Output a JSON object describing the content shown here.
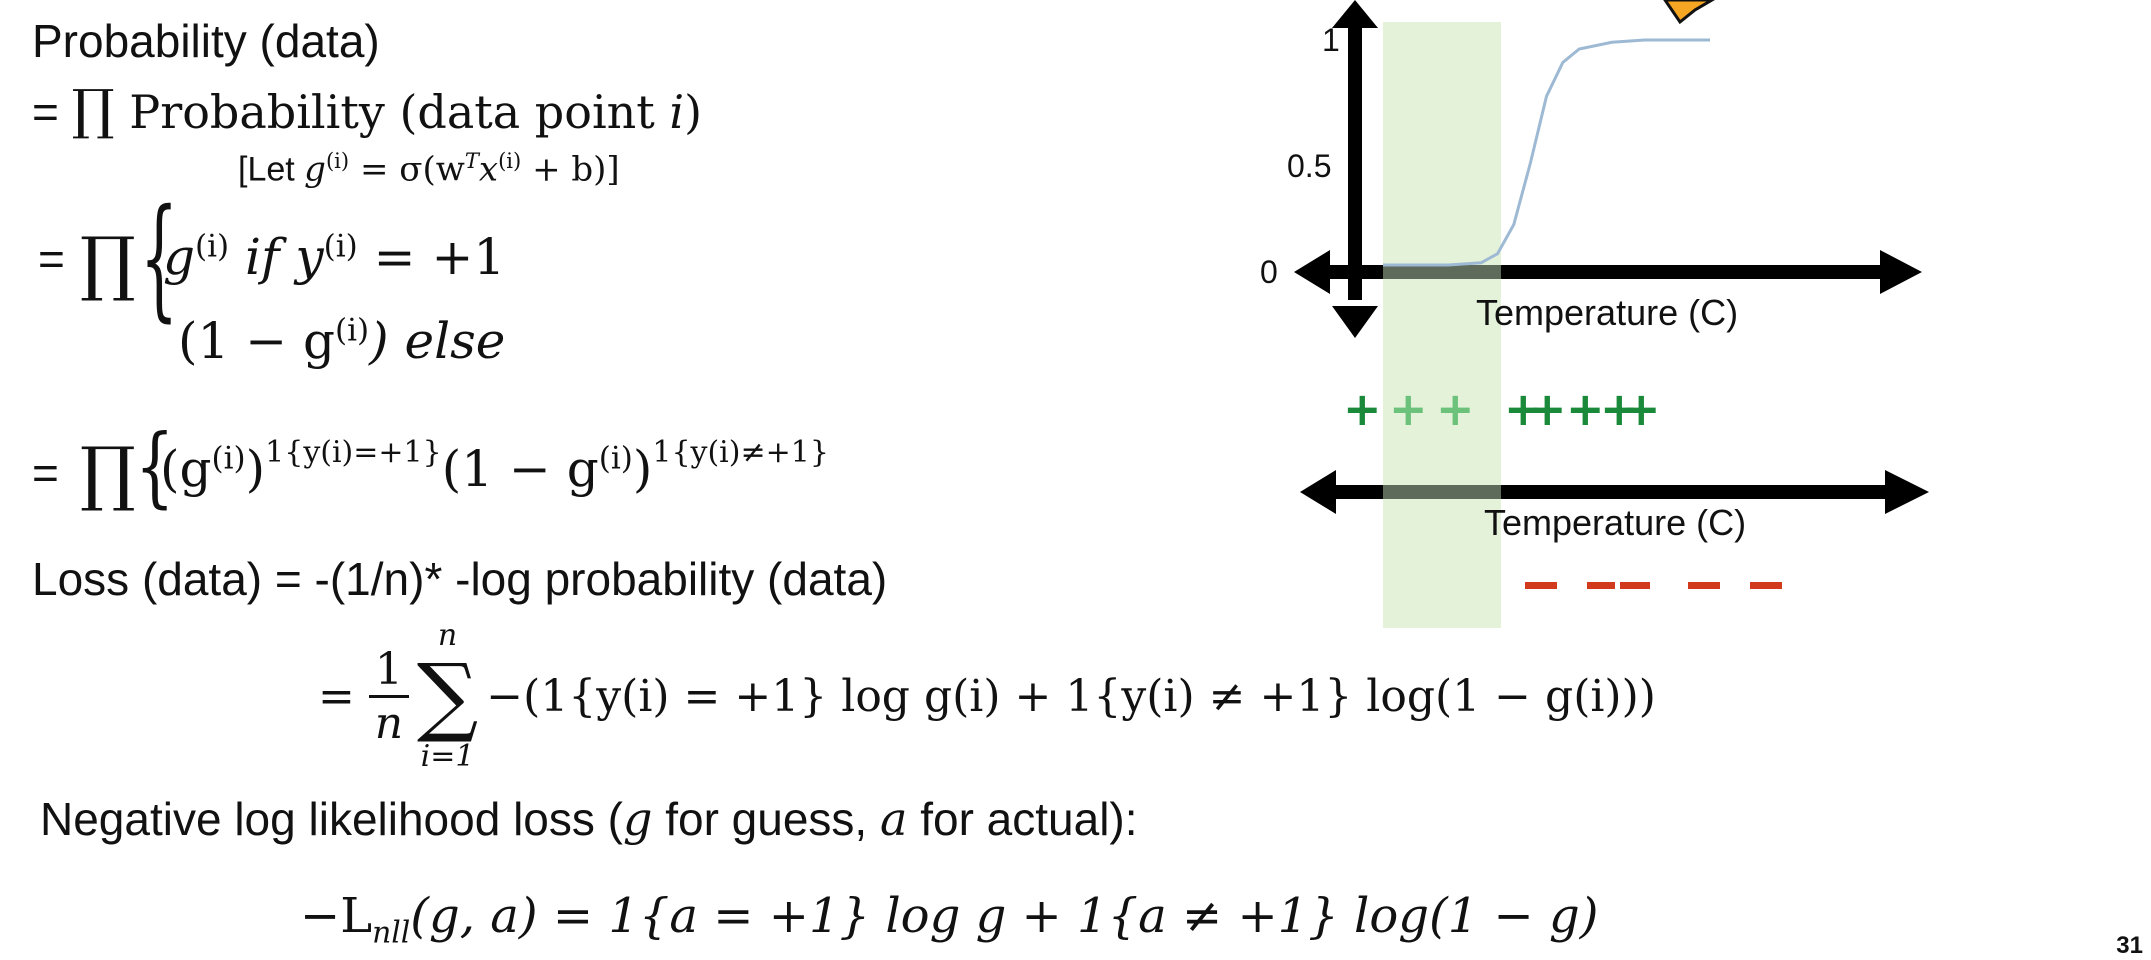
{
  "slide": {
    "number": "31",
    "line1": "Probability (data)",
    "line2_prefix": "= ",
    "line2_text": "Probability (data point ",
    "line2_var": "i",
    "line2_close": ")",
    "let_text": "[Let ",
    "let_g": "g",
    "let_sup": "(i)",
    "let_eq": " = σ(w",
    "let_T": "T",
    "let_x": "x",
    "let_xsup": "(i)",
    "let_end": " + b)]",
    "case1_g": "g",
    "case1_sup": "(i)",
    "case1_rest": " if y",
    "case1_ysup": "(i)",
    "case1_tail": " = +1",
    "case2_open": "(1 − g",
    "case2_sup": "(i)",
    "case2_close": ")  else",
    "prod_eq_prefix": "= ",
    "line4_a": "(g",
    "line4_a_sup": "(i)",
    "line4_a_close": ")",
    "line4_a_exp": "1{y(i)=+1}",
    "line4_b": "(1 − g",
    "line4_b_sup": "(i)",
    "line4_b_close": ")",
    "line4_b_exp": "1{y(i)≠+1}",
    "loss_line": "Loss (data) = -(1/n)* -log probability (data)",
    "loss_eq": "=",
    "frac_num": "1",
    "frac_den": "n",
    "sum_top": "n",
    "sum_bot": "i=1",
    "loss_body": "−(1{y(i) = +1} log g(i) + 1{y(i) ≠ +1} log(1 − g(i)))",
    "nll_title_a": "Negative log likelihood loss (",
    "nll_g": "g",
    "nll_title_b": " for guess, ",
    "nll_a": "a",
    "nll_title_c": " for actual):",
    "nll_formula_lhs": "−L",
    "nll_formula_sub": "nll",
    "nll_formula_rhs": "(g, a) = 1{a = +1} log g + 1{a ≠ +1} log(1 − g)"
  },
  "chart_data": [
    {
      "type": "line",
      "title": "",
      "xlabel": "Temperature (C)",
      "ylabel": "",
      "yticks": [
        "0",
        "0.5",
        "1"
      ],
      "ylim": [
        0,
        1
      ],
      "series": [
        {
          "shape": "sigmoid",
          "color": "#9db9d3",
          "x": [
            0,
            0.1,
            0.2,
            0.3,
            0.35,
            0.4,
            0.45,
            0.5,
            0.55,
            0.6,
            0.7,
            0.8,
            0.9,
            1.0
          ],
          "y": [
            0,
            0,
            0,
            0.01,
            0.05,
            0.18,
            0.45,
            0.75,
            0.9,
            0.96,
            0.99,
            1.0,
            1.0,
            1.0
          ]
        }
      ],
      "highlight_color": "#e3f2d9"
    },
    {
      "type": "scatter",
      "xlabel": "Temperature (C)",
      "positive_marker": "+",
      "negative_marker": "−",
      "positive_colors": [
        "#1a8a3a",
        "#6cc27a",
        "#6cc27a",
        "#1a8a3a",
        "#1a8a3a",
        "#1a8a3a",
        "#1a8a3a",
        "#1a8a3a"
      ],
      "negative_color": "#d23a1e"
    }
  ],
  "colors": {
    "axis": "#000000",
    "highlight_band": "#e3f2d9",
    "band_overlay": "#5f6b5a",
    "plus_dark": "#1a8a3a",
    "plus_light": "#6cc27a",
    "minus": "#d23a1e",
    "orange_shape": "#f5a623"
  }
}
